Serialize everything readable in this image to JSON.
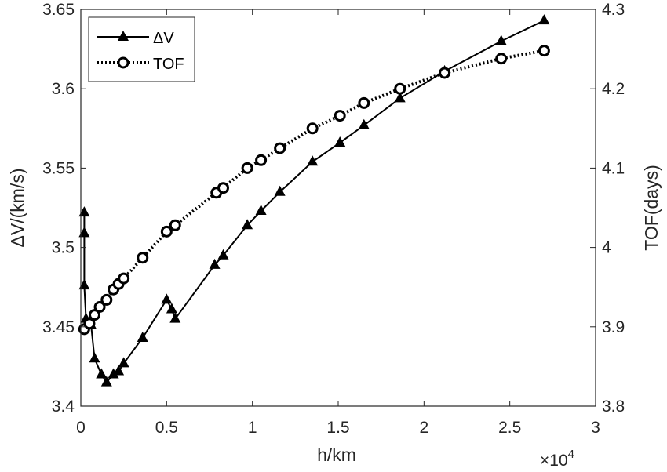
{
  "chart_data": {
    "type": "line",
    "xlabel": "h/km",
    "x_multiplier_label": "×10",
    "x_multiplier_exponent": "4",
    "xlim": [
      0,
      3
    ],
    "x_ticks": [
      "0",
      "0.5",
      "1",
      "1.5",
      "2",
      "2.5",
      "3"
    ],
    "x_tick_values": [
      0,
      0.5,
      1,
      1.5,
      2,
      2.5,
      3
    ],
    "y_left": {
      "label": "ΔV/(km/s)",
      "ylim": [
        3.4,
        3.65
      ],
      "ticks": [
        "3.4",
        "3.45",
        "3.5",
        "3.55",
        "3.6",
        "3.65"
      ],
      "tick_values": [
        3.4,
        3.45,
        3.5,
        3.55,
        3.6,
        3.65
      ]
    },
    "y_right": {
      "label": "TOF(days)",
      "ylim": [
        3.8,
        4.3
      ],
      "ticks": [
        "3.8",
        "3.9",
        "4",
        "4.1",
        "4.2",
        "4.3"
      ],
      "tick_values": [
        3.8,
        3.9,
        4.0,
        4.1,
        4.2,
        4.3
      ]
    },
    "legend_position": "top-left",
    "series": [
      {
        "name": "ΔV",
        "axis": "left",
        "marker": "triangle",
        "line": "solid",
        "color": "#000000",
        "x": [
          0.02,
          0.02,
          0.02,
          0.03,
          0.06,
          0.08,
          0.12,
          0.15,
          0.19,
          0.22,
          0.25,
          0.36,
          0.5,
          0.53,
          0.55,
          0.78,
          0.83,
          0.97,
          1.05,
          1.16,
          1.35,
          1.51,
          1.65,
          1.86,
          2.12,
          2.45,
          2.7
        ],
        "y": [
          3.522,
          3.509,
          3.476,
          3.455,
          3.451,
          3.43,
          3.42,
          3.415,
          3.42,
          3.422,
          3.427,
          3.443,
          3.467,
          3.461,
          3.455,
          3.489,
          3.495,
          3.514,
          3.523,
          3.535,
          3.554,
          3.566,
          3.577,
          3.594,
          3.611,
          3.63,
          3.643
        ]
      },
      {
        "name": "TOF",
        "axis": "right",
        "marker": "circle",
        "line": "dotted",
        "color": "#000000",
        "x": [
          0.02,
          0.05,
          0.08,
          0.11,
          0.15,
          0.19,
          0.22,
          0.25,
          0.36,
          0.5,
          0.55,
          0.79,
          0.83,
          0.97,
          1.05,
          1.16,
          1.35,
          1.51,
          1.65,
          1.86,
          2.12,
          2.45,
          2.7
        ],
        "y": [
          3.897,
          3.904,
          3.915,
          3.925,
          3.934,
          3.947,
          3.954,
          3.961,
          3.987,
          4.02,
          4.028,
          4.069,
          4.075,
          4.1,
          4.11,
          4.125,
          4.15,
          4.166,
          4.182,
          4.2,
          4.22,
          4.238,
          4.248
        ]
      }
    ]
  }
}
